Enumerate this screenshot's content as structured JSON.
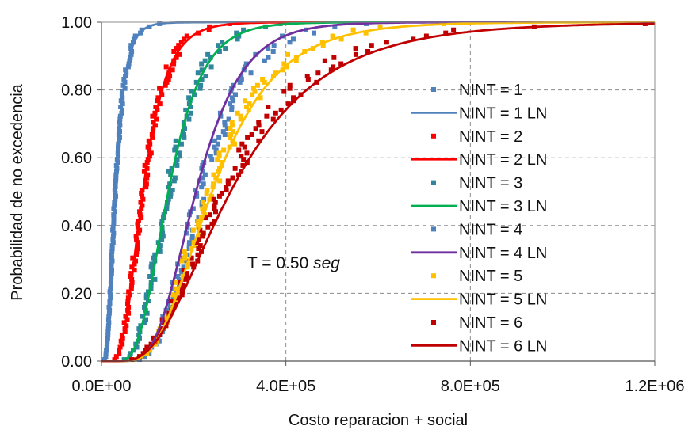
{
  "chart_data": {
    "type": "scatter",
    "xlabel": "Costo reparacion + social",
    "ylabel": "Probabilidad de no excedencia",
    "xlim": [
      0,
      1200000
    ],
    "ylim": [
      0,
      1
    ],
    "x_ticks": [
      0,
      400000,
      800000,
      1200000
    ],
    "x_tick_labels": [
      "0.0E+00",
      "4.0E+05",
      "8.0E+05",
      "1.2E+06"
    ],
    "y_ticks": [
      0,
      0.2,
      0.4,
      0.6,
      0.8,
      1.0
    ],
    "y_tick_labels": [
      "0.00",
      "0.20",
      "0.40",
      "0.60",
      "0.80",
      "1.00"
    ],
    "grid": "dashed",
    "legend_position": "right",
    "annotation": {
      "prefix": "T = 0.50 ",
      "italic": "seg"
    },
    "series": [
      {
        "name": "NINT = 1",
        "kind": "empirical",
        "color": "#4F81BD",
        "median": 30000,
        "beta": 0.55,
        "points": 110,
        "xmax": 170000
      },
      {
        "name": "NINT = 1 LN",
        "kind": "lognormal",
        "color": "#4F81BD",
        "median": 30000,
        "beta": 0.55
      },
      {
        "name": "NINT = 2",
        "kind": "empirical",
        "color": "#FF0000",
        "median": 90000,
        "beta": 0.45,
        "points": 110,
        "xmax": 330000
      },
      {
        "name": "NINT = 2 LN",
        "kind": "lognormal",
        "color": "#FF0000",
        "median": 90000,
        "beta": 0.45
      },
      {
        "name": "NINT = 3",
        "kind": "empirical",
        "color": "#31859C",
        "median": 145000,
        "beta": 0.4,
        "points": 110,
        "xmax": 560000
      },
      {
        "name": "NINT = 3 LN",
        "kind": "lognormal",
        "color": "#00B050",
        "median": 145000,
        "beta": 0.4
      },
      {
        "name": "NINT = 4",
        "kind": "empirical",
        "color": "#4F81BD",
        "median": 215000,
        "beta": 0.38,
        "points": 110,
        "xmax": 680000
      },
      {
        "name": "NINT = 4 LN",
        "kind": "lognormal",
        "color": "#7030A0",
        "median": 205000,
        "beta": 0.38
      },
      {
        "name": "NINT = 5",
        "kind": "empirical",
        "color": "#FFC000",
        "median": 235000,
        "beta": 0.45,
        "points": 110,
        "xmax": 990000
      },
      {
        "name": "NINT = 5 LN",
        "kind": "lognormal",
        "color": "#FFC000",
        "median": 240000,
        "beta": 0.45
      },
      {
        "name": "NINT = 6",
        "kind": "empirical",
        "color": "#C00000",
        "median": 265000,
        "beta": 0.55,
        "points": 110,
        "xmax": 1190000
      },
      {
        "name": "NINT = 6 LN",
        "kind": "lognormal",
        "color": "#C00000",
        "median": 280000,
        "beta": 0.55
      }
    ]
  }
}
